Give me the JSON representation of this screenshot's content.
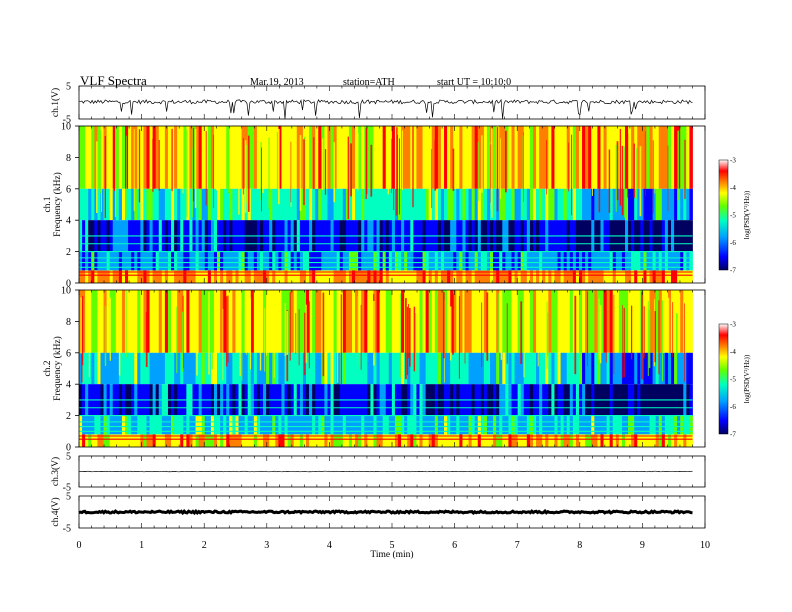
{
  "header": {
    "title": "VLF  Spectra",
    "date": "Mar.19, 2013",
    "station": "station=ATH",
    "start": "start  UT  =    10:10:0"
  },
  "chart_data": [
    {
      "type": "line",
      "panel": "ch1-waveform",
      "ylabel": "ch.1(V)",
      "ylim": [
        -5,
        5
      ],
      "yticks": [
        "5",
        "-5"
      ],
      "x_range_min": [
        0,
        9.8
      ],
      "description_values": "noise-like signal centered near 0 V with frequent spikes reaching about -5 V",
      "baseline": 0.2,
      "amplitude": 0.6
    },
    {
      "type": "heatmap",
      "panel": "ch1-spectrogram",
      "ylabel": "ch.1\nFrequency (kHz)",
      "ylim": [
        0,
        10
      ],
      "yticks": [
        "0",
        "2",
        "4",
        "6",
        "8",
        "10"
      ],
      "x_range_min": [
        0,
        9.8
      ],
      "zlabel": "log(PSD(V²/Hz))",
      "zlim": [
        -7,
        -3
      ],
      "zticks": [
        "-3",
        "-4",
        "-5",
        "-6",
        "-7"
      ],
      "bands": [
        {
          "f_low": 6.0,
          "f_high": 10.0,
          "logPSD": -4.2
        },
        {
          "f_low": 4.0,
          "f_high": 6.0,
          "logPSD": -5.3
        },
        {
          "f_low": 2.0,
          "f_high": 4.0,
          "logPSD": -6.3
        },
        {
          "f_low": 0.8,
          "f_high": 2.0,
          "logPSD": -5.8
        },
        {
          "f_low": 0.0,
          "f_high": 0.8,
          "logPSD": -4.0
        }
      ],
      "lines_khz": [
        0.5,
        0.7,
        1.0,
        1.3,
        1.6,
        2.0,
        2.5,
        3.0
      ]
    },
    {
      "type": "heatmap",
      "panel": "ch2-spectrogram",
      "ylabel": "ch.2\nFrequency (kHz)",
      "ylim": [
        0,
        10
      ],
      "yticks": [
        "0",
        "2",
        "4",
        "6",
        "8",
        "10"
      ],
      "x_range_min": [
        0,
        9.8
      ],
      "zlabel": "log(PSD(V²/Hz))",
      "zlim": [
        -7,
        -3
      ],
      "zticks": [
        "-3",
        "-4",
        "-5",
        "-6",
        "-7"
      ],
      "bands": [
        {
          "f_low": 6.0,
          "f_high": 10.0,
          "logPSD": -4.3
        },
        {
          "f_low": 4.0,
          "f_high": 6.0,
          "logPSD": -5.4
        },
        {
          "f_low": 2.0,
          "f_high": 4.0,
          "logPSD": -6.3
        },
        {
          "f_low": 0.8,
          "f_high": 2.0,
          "logPSD": -5.6
        },
        {
          "f_low": 0.0,
          "f_high": 0.8,
          "logPSD": -4.2
        }
      ],
      "lines_khz": [
        0.5,
        0.7,
        1.0,
        1.3,
        1.6,
        2.0,
        2.5,
        3.0
      ]
    },
    {
      "type": "line",
      "panel": "ch3-waveform",
      "ylabel": "ch.3(V)",
      "ylim": [
        -5,
        5
      ],
      "yticks": [
        "5",
        "-5"
      ],
      "x_range_min": [
        0,
        9.8
      ],
      "baseline": 0.0,
      "amplitude": 0.1
    },
    {
      "type": "line",
      "panel": "ch4-waveform",
      "ylabel": "ch.4(V)",
      "ylim": [
        -5,
        5
      ],
      "yticks": [
        "5",
        "-5"
      ],
      "x_range_min": [
        0,
        9.8
      ],
      "baseline": 0.0,
      "amplitude": 0.3
    }
  ],
  "xaxis": {
    "label": "Time  (min)",
    "xlim": [
      0,
      10
    ],
    "ticks": [
      "0",
      "1",
      "2",
      "3",
      "4",
      "5",
      "6",
      "7",
      "8",
      "9",
      "10"
    ]
  },
  "colors": {
    "colormap": [
      "#000060",
      "#0000ff",
      "#00a0ff",
      "#00ffc0",
      "#60ff00",
      "#ffff00",
      "#ff8000",
      "#ff0000",
      "#ffffff"
    ]
  }
}
